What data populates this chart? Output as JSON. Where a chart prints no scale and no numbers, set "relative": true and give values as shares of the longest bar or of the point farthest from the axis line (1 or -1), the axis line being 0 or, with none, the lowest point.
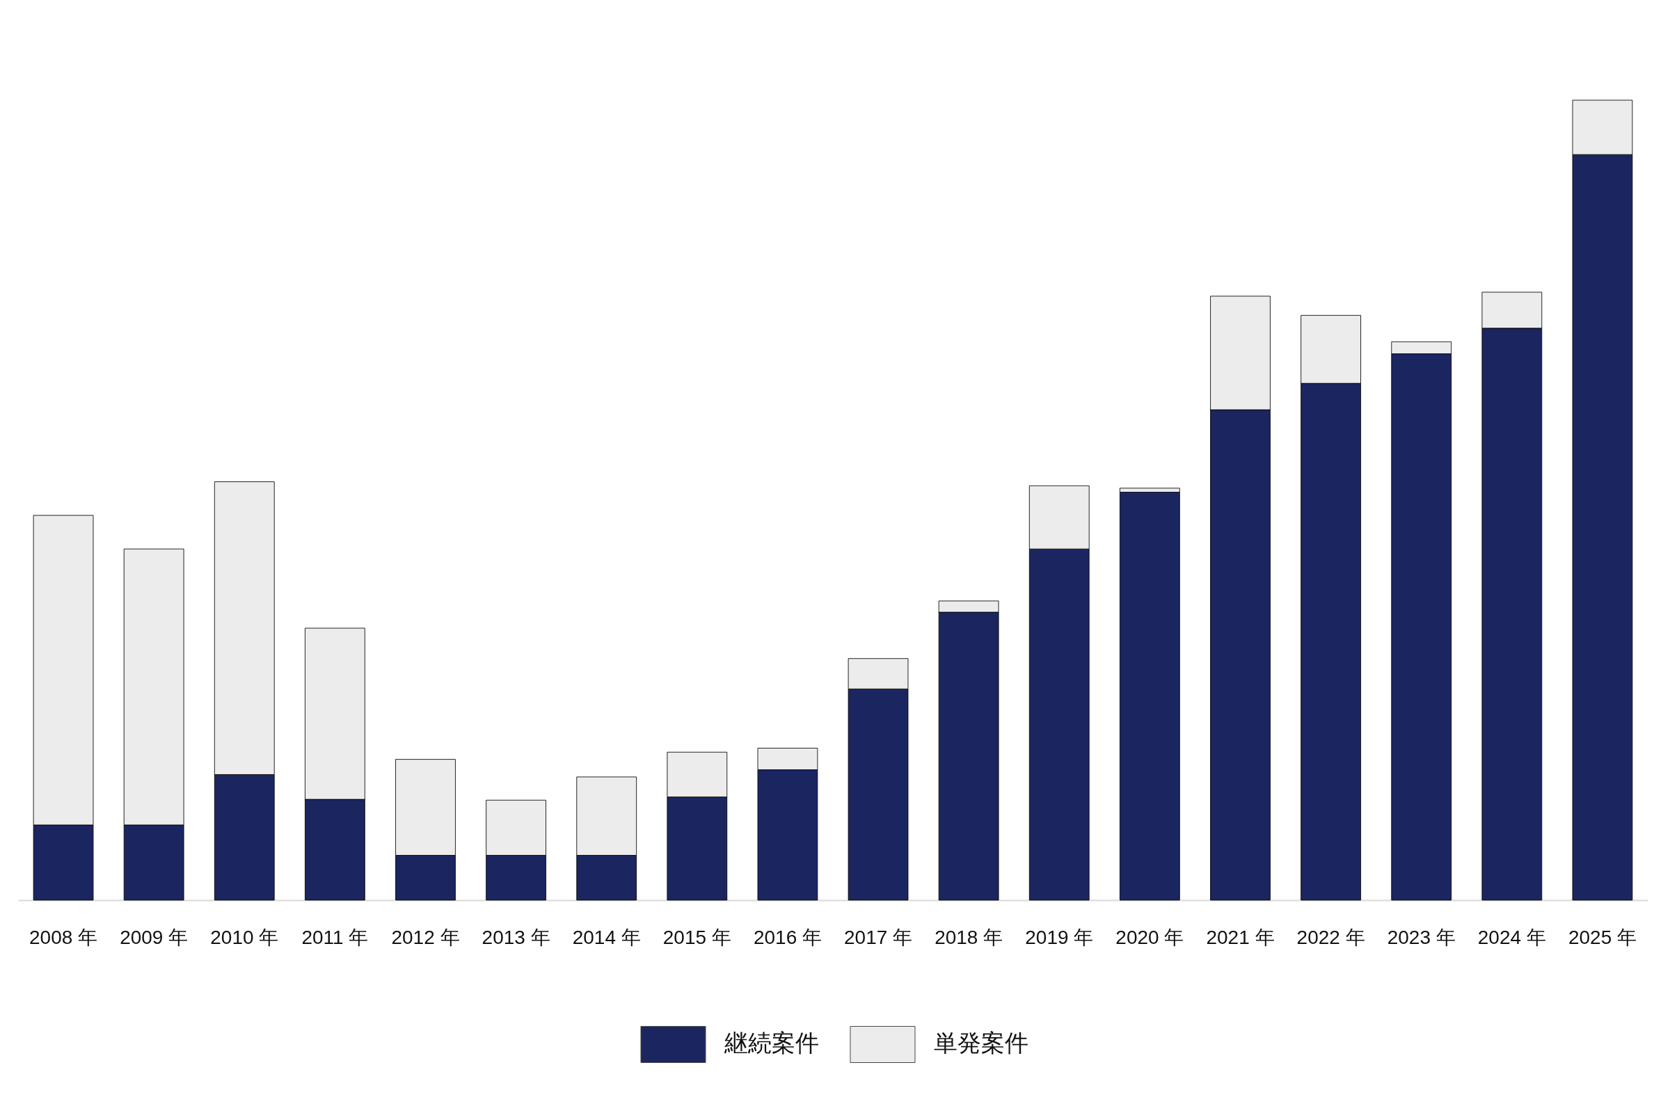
{
  "chart_data": {
    "type": "bar",
    "stacked": true,
    "relative": true,
    "legend": "bottom",
    "categories": [
      "2008 年",
      "2009 年",
      "2010 年",
      "2011 年",
      "2012 年",
      "2013 年",
      "2014 年",
      "2015 年",
      "2016 年",
      "2017 年",
      "2018 年",
      "2019 年",
      "2020 年",
      "2021 年",
      "2022 年",
      "2023 年",
      "2024 年",
      "2025 年"
    ],
    "series": [
      {
        "name": "継続案件",
        "color": "#1b2660",
        "values": [
          0.094,
          0.094,
          0.157,
          0.126,
          0.056,
          0.056,
          0.056,
          0.129,
          0.163,
          0.264,
          0.36,
          0.439,
          0.51,
          0.613,
          0.646,
          0.683,
          0.715,
          0.932
        ]
      },
      {
        "name": "単発案件",
        "color": "#ececec",
        "values": [
          0.387,
          0.345,
          0.366,
          0.214,
          0.12,
          0.069,
          0.098,
          0.056,
          0.027,
          0.038,
          0.014,
          0.079,
          0.005,
          0.142,
          0.085,
          0.015,
          0.045,
          0.068
        ]
      }
    ]
  }
}
